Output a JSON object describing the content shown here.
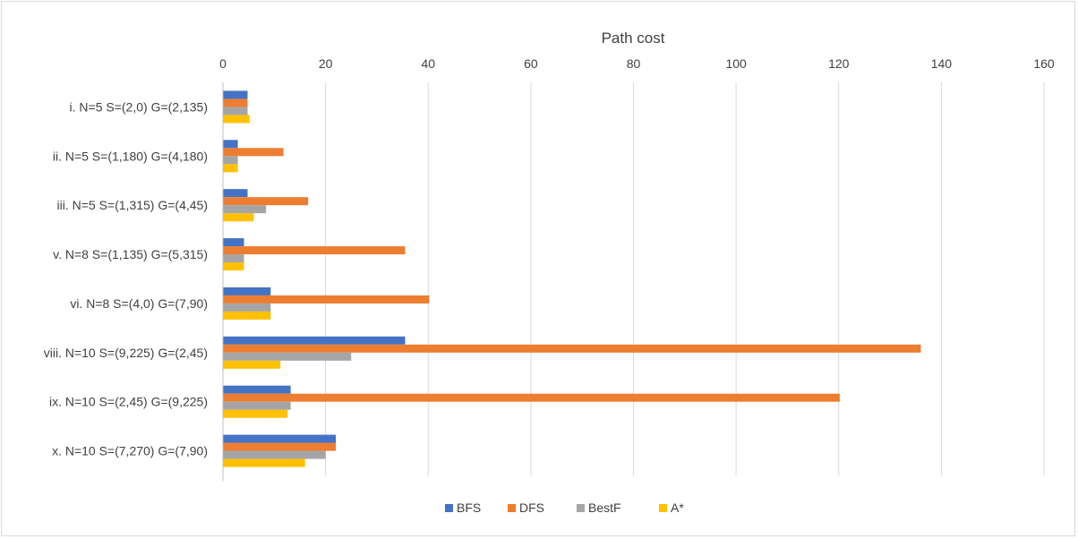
{
  "chart_data": {
    "type": "bar",
    "orientation": "horizontal",
    "xlabel": "Path cost",
    "ylabel": "",
    "xlim": [
      0,
      160
    ],
    "xticks": [
      0,
      20,
      40,
      60,
      80,
      100,
      120,
      140,
      160
    ],
    "grid": true,
    "legend_position": "bottom",
    "categories": [
      "i. N=5 S=(2,0) G=(2,135)",
      "ii. N=5 S=(1,180) G=(4,180)",
      "iii.  N=5 S=(1,315) G=(4,45)",
      "v. N=8 S=(1,135) G=(5,315)",
      "vi. N=8 S=(4,0) G=(7,90)",
      "viii.  N=10 S=(9,225) G=(2,45)",
      "ix. N=10 S=(2,45) G=(9,225)",
      "x. N=10 S=(7,270) G=(7,90)"
    ],
    "series": [
      {
        "name": "BFS",
        "color": "#4472c4",
        "values": [
          4.8,
          2.9,
          4.8,
          4.1,
          9.3,
          35.5,
          13.2,
          22.0
        ]
      },
      {
        "name": "DFS",
        "color": "#ed7d31",
        "values": [
          4.8,
          11.8,
          16.6,
          35.5,
          40.2,
          136.0,
          120.2,
          22.0
        ]
      },
      {
        "name": "BestF",
        "color": "#a5a5a5",
        "values": [
          4.8,
          2.9,
          8.4,
          4.1,
          9.3,
          25.0,
          13.2,
          20.0
        ]
      },
      {
        "name": "A*",
        "color": "#ffc000",
        "values": [
          5.2,
          2.9,
          6.0,
          4.1,
          9.3,
          11.2,
          12.6,
          16.0
        ]
      }
    ]
  }
}
